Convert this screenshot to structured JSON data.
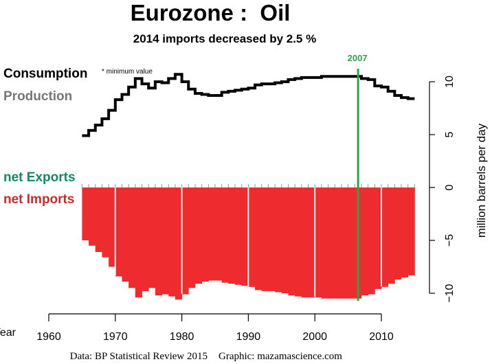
{
  "chart_data": {
    "type": "bar",
    "title": "Eurozone :  Oil",
    "subtitle": "2014 imports decreased by 2.5 %",
    "xlabel": "Year",
    "ylabel": "million barrels per day",
    "xlim": [
      1960,
      2015
    ],
    "ylim": [
      -10,
      10
    ],
    "x_ticks": [
      1960,
      1970,
      1980,
      1990,
      2000,
      2010
    ],
    "y_ticks": [
      10,
      5,
      0,
      -5,
      -10
    ],
    "y_tick_labels": [
      "10",
      "5",
      "0",
      "−5",
      "−10"
    ],
    "x_tick_labels": [
      "1960",
      "1970",
      "1980",
      "1990",
      "2000",
      "2010"
    ],
    "legend": {
      "consumption": "Consumption",
      "minimum_note": "* minimum value",
      "production": "Production",
      "net_exports": "net Exports",
      "net_imports": "net Imports"
    },
    "marker": {
      "label": "2007",
      "year": 2007
    },
    "years": [
      1965,
      1966,
      1967,
      1968,
      1969,
      1970,
      1971,
      1972,
      1973,
      1974,
      1975,
      1976,
      1977,
      1978,
      1979,
      1980,
      1981,
      1982,
      1983,
      1984,
      1985,
      1986,
      1987,
      1988,
      1989,
      1990,
      1991,
      1992,
      1993,
      1994,
      1995,
      1996,
      1997,
      1998,
      1999,
      2000,
      2001,
      2002,
      2003,
      2004,
      2005,
      2006,
      2007,
      2008,
      2009,
      2010,
      2011,
      2012,
      2013,
      2014
    ],
    "series": [
      {
        "name": "net Imports",
        "values": [
          -5.0,
          -5.5,
          -6.1,
          -6.6,
          -7.5,
          -8.4,
          -8.9,
          -9.5,
          -10.4,
          -9.8,
          -9.5,
          -10.2,
          -10.1,
          -10.3,
          -10.6,
          -10.1,
          -9.5,
          -9.1,
          -8.9,
          -8.8,
          -8.8,
          -9.0,
          -9.1,
          -9.2,
          -9.3,
          -9.4,
          -9.7,
          -9.8,
          -9.8,
          -9.9,
          -10.0,
          -10.2,
          -10.3,
          -10.4,
          -10.4,
          -10.4,
          -10.5,
          -10.5,
          -10.5,
          -10.5,
          -10.5,
          -10.5,
          -10.2,
          -10.1,
          -9.6,
          -9.4,
          -9.1,
          -8.7,
          -8.5,
          -8.3
        ]
      },
      {
        "name": "Consumption",
        "values": [
          4.9,
          5.4,
          5.9,
          6.5,
          7.3,
          8.3,
          8.8,
          9.5,
          10.3,
          9.8,
          9.4,
          10.0,
          9.9,
          10.3,
          10.7,
          10.0,
          9.3,
          8.9,
          8.8,
          8.7,
          8.7,
          9.0,
          9.1,
          9.2,
          9.3,
          9.4,
          9.7,
          9.8,
          9.8,
          9.9,
          10.0,
          10.2,
          10.3,
          10.4,
          10.4,
          10.4,
          10.5,
          10.5,
          10.5,
          10.5,
          10.5,
          10.5,
          10.3,
          10.2,
          9.6,
          9.5,
          9.1,
          8.7,
          8.5,
          8.4
        ]
      }
    ],
    "colors": {
      "imports": "#ee2b2e",
      "consumption": "#000000",
      "production": "#777777",
      "exports": "#138a5e",
      "imports_label": "#cc2a2a",
      "marker": "#2ca44a",
      "tick": "#6aa6a0"
    },
    "source": "Data: BP Statistical Review 2015",
    "credit": "Graphic: mazamascience.com"
  }
}
